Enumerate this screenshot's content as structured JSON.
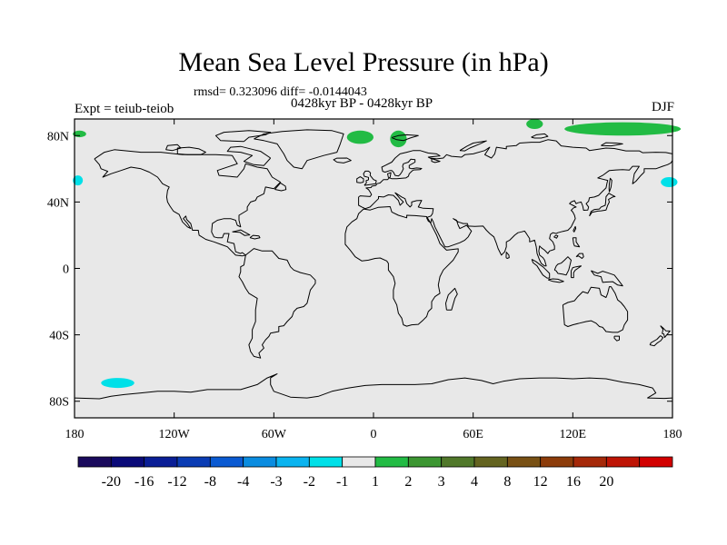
{
  "title": "Mean Sea Level Pressure (in hPa)",
  "stats": "rmsd= 0.323096 diff= -0.0144043",
  "subtitle": "0428kyr BP - 0428kyr BP",
  "left_label": "Expt = teiub-teiob",
  "right_label": "DJF",
  "map": {
    "lon_range": [
      -180,
      180
    ],
    "lat_range": [
      -90,
      90
    ],
    "land_color": "#e8e8e8",
    "coast_color": "#000000",
    "lon_ticks": [
      {
        "value": -180,
        "label": "180"
      },
      {
        "value": -120,
        "label": "120W"
      },
      {
        "value": -60,
        "label": "60W"
      },
      {
        "value": 0,
        "label": "0"
      },
      {
        "value": 60,
        "label": "60E"
      },
      {
        "value": 120,
        "label": "120E"
      },
      {
        "value": 180,
        "label": "180"
      }
    ],
    "lat_ticks": [
      {
        "value": 80,
        "label": "80N"
      },
      {
        "value": 40,
        "label": "40N"
      },
      {
        "value": 0,
        "label": "0"
      },
      {
        "value": -40,
        "label": "40S"
      },
      {
        "value": -80,
        "label": "80S"
      }
    ],
    "anomaly_regions": [
      {
        "name": "arctic-atlantic-green-1",
        "color": "#22bb44",
        "lon": -8,
        "lat": 79,
        "rlon": 8,
        "rlat": 4
      },
      {
        "name": "arctic-atlantic-green-2",
        "color": "#22bb44",
        "lon": 15,
        "lat": 78,
        "rlon": 5,
        "rlat": 5
      },
      {
        "name": "siberia-green-1",
        "color": "#22bb44",
        "lon": 97,
        "lat": 87,
        "rlon": 5,
        "rlat": 3
      },
      {
        "name": "siberia-green-2",
        "color": "#22bb44",
        "lon": 150,
        "lat": 84,
        "rlon": 35,
        "rlat": 4
      },
      {
        "name": "bering-green",
        "color": "#22bb44",
        "lon": -177,
        "lat": 81,
        "rlon": 4,
        "rlat": 2
      },
      {
        "name": "north-pacific-cyan-east",
        "color": "#00e0e8",
        "lon": 178,
        "lat": 52,
        "rlon": 5,
        "rlat": 3
      },
      {
        "name": "north-pacific-cyan-west",
        "color": "#00e0e8",
        "lon": -178,
        "lat": 53,
        "rlon": 3,
        "rlat": 3
      },
      {
        "name": "south-pacific-cyan",
        "color": "#00e0e8",
        "lon": -154,
        "lat": -69,
        "rlon": 10,
        "rlat": 3
      }
    ]
  },
  "colorbar": {
    "colors": [
      "#1a0a5c",
      "#0a0a78",
      "#0a1e96",
      "#0a3cb4",
      "#0a5ad2",
      "#0a8ce0",
      "#0ab4f0",
      "#00e0e8",
      "#e8e8e8",
      "#22bb44",
      "#3c9632",
      "#50782a",
      "#646420",
      "#785014",
      "#8c3c0a",
      "#a52808",
      "#be1405",
      "#d20000"
    ],
    "labels": [
      "-20",
      "-16",
      "-12",
      "-8",
      "-4",
      "-3",
      "-2",
      "-1",
      "1",
      "2",
      "3",
      "4",
      "8",
      "12",
      "16",
      "20"
    ]
  }
}
